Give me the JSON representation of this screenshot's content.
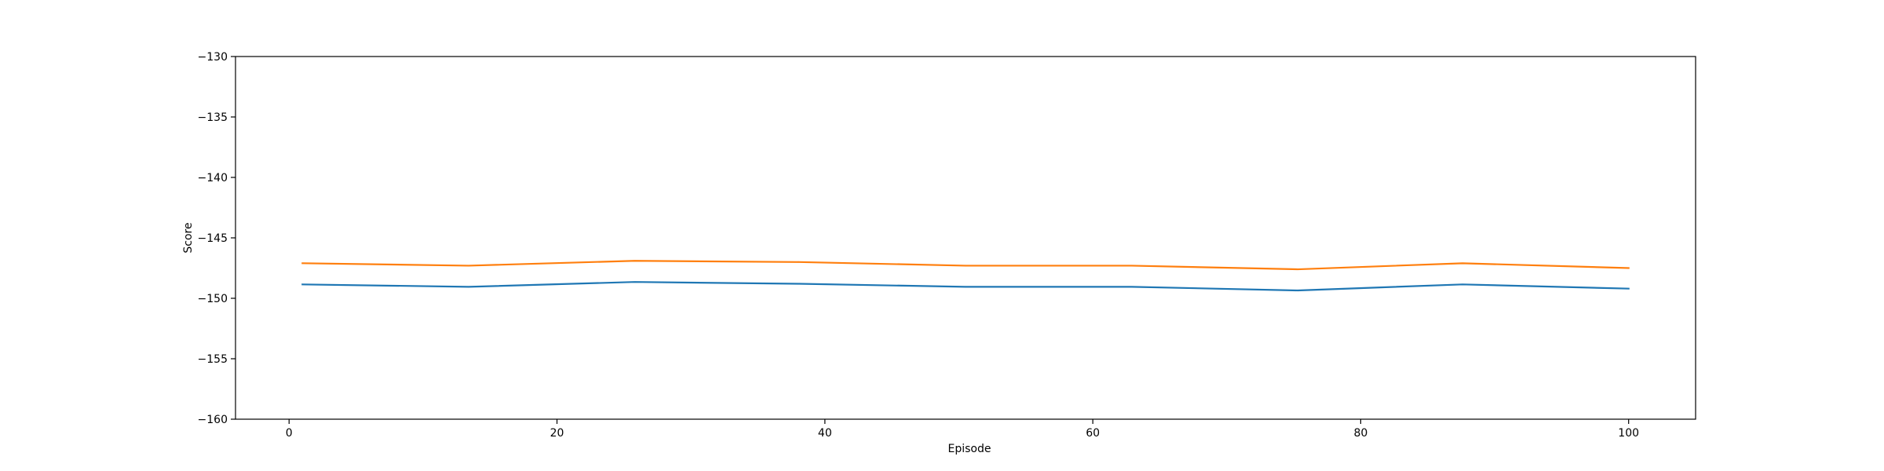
{
  "chart_data": {
    "type": "line",
    "title": "",
    "xlabel": "Episode",
    "ylabel": "Score",
    "xlim": [
      -4,
      105
    ],
    "ylim": [
      -160,
      -130
    ],
    "xticks": [
      0,
      20,
      40,
      60,
      80,
      100
    ],
    "yticks": [
      -160,
      -155,
      -150,
      -145,
      -140,
      -135,
      -130
    ],
    "tick_labels": {
      "x": [
        "0",
        "20",
        "40",
        "60",
        "80",
        "100"
      ],
      "y": [
        "−160",
        "−155",
        "−150",
        "−145",
        "−140",
        "−135",
        "−130"
      ]
    },
    "grid": false,
    "legend": "none",
    "x": [
      1,
      13.4,
      25.8,
      38.1,
      50.5,
      62.9,
      75.3,
      87.6,
      100
    ],
    "series": [
      {
        "color": "#1f77b4",
        "values": [
          -148.85,
          -149.05,
          -148.65,
          -148.8,
          -149.05,
          -149.05,
          -149.35,
          -148.85,
          -149.2
        ]
      },
      {
        "color": "#ff7f0e",
        "values": [
          -147.1,
          -147.3,
          -146.9,
          -147.0,
          -147.3,
          -147.3,
          -147.6,
          -147.1,
          -147.5
        ]
      }
    ]
  }
}
